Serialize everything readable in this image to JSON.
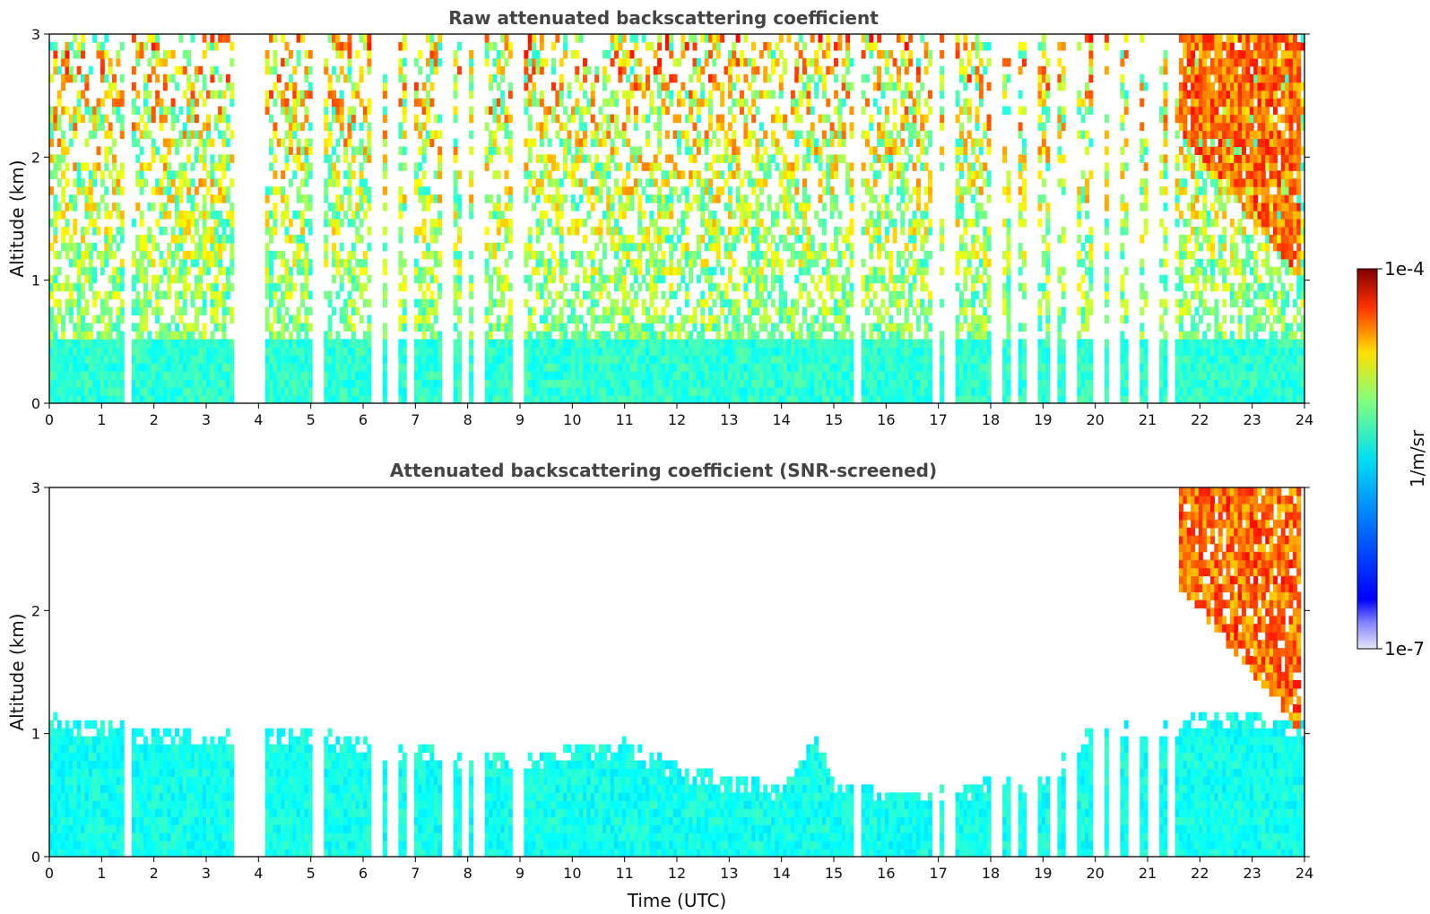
{
  "chart_data": [
    {
      "type": "heatmap",
      "title": "Raw attenuated backscattering coefficient",
      "xlabel": "",
      "ylabel": "Altitude (km)",
      "xlim": [
        0,
        24
      ],
      "ylim": [
        0,
        3
      ],
      "xticks": [
        "0",
        "1",
        "2",
        "3",
        "4",
        "5",
        "6",
        "7",
        "8",
        "9",
        "10",
        "11",
        "12",
        "13",
        "14",
        "15",
        "16",
        "17",
        "18",
        "19",
        "20",
        "21",
        "22",
        "23",
        "24"
      ],
      "yticks": [
        "0",
        "1",
        "2",
        "3"
      ],
      "grid": false,
      "data_gaps_utc": [
        1.5,
        3.65,
        3.8,
        4.0,
        5.15,
        6.25,
        6.55,
        6.9,
        7.6,
        7.95,
        8.2,
        8.95,
        15.45,
        16.95,
        17.2,
        18.1,
        18.45,
        18.8,
        19.2,
        19.55,
        20.05,
        20.35,
        20.75,
        21.1,
        21.45
      ],
      "features": [
        {
          "label": "boundary layer aerosol",
          "x_range_utc": [
            0,
            24
          ],
          "altitude_top_km": 0.5,
          "log10_value": -5.9
        },
        {
          "label": "cloud / precipitation",
          "x_range_utc": [
            21.6,
            23.95
          ],
          "altitude_range_km": [
            1.0,
            3.0
          ],
          "log10_value": -4.4
        }
      ]
    },
    {
      "type": "heatmap",
      "title": "Attenuated backscattering coefficient (SNR-screened)",
      "xlabel": "Time (UTC)",
      "ylabel": "Altitude (km)",
      "xlim": [
        0,
        24
      ],
      "ylim": [
        0,
        3
      ],
      "xticks": [
        "0",
        "1",
        "2",
        "3",
        "4",
        "5",
        "6",
        "7",
        "8",
        "9",
        "10",
        "11",
        "12",
        "13",
        "14",
        "15",
        "16",
        "17",
        "18",
        "19",
        "20",
        "21",
        "22",
        "23",
        "24"
      ],
      "yticks": [
        "0",
        "1",
        "2",
        "3"
      ],
      "grid": false,
      "boundary_layer_top_km": {
        "utc": [
          0,
          1,
          2,
          3,
          4,
          5,
          6,
          7,
          8,
          9,
          10,
          11,
          12,
          13,
          14,
          14.7,
          15,
          16,
          17,
          18,
          19,
          20,
          21,
          22,
          23,
          24
        ],
        "altitude": [
          1.15,
          1.1,
          1.05,
          1.0,
          1.05,
          1.05,
          0.95,
          0.9,
          0.85,
          0.8,
          0.9,
          0.95,
          0.75,
          0.65,
          0.6,
          1.0,
          0.6,
          0.55,
          0.55,
          0.65,
          0.65,
          1.1,
          1.1,
          1.15,
          1.15,
          1.1
        ]
      },
      "features": [
        {
          "label": "cloud / precipitation",
          "x_range_utc": [
            21.6,
            23.95
          ],
          "altitude_range_km": [
            1.0,
            3.0
          ],
          "log10_value": -4.4
        }
      ]
    }
  ],
  "colorbar": {
    "label": "1/m/sr",
    "min_label": "1e-7",
    "max_label": "1e-4",
    "scale": "log",
    "colormap": "jet",
    "colors": [
      "#e6e6fa",
      "#0000ff",
      "#00ffff",
      "#ffff00",
      "#ff0000",
      "#7f0000"
    ]
  }
}
